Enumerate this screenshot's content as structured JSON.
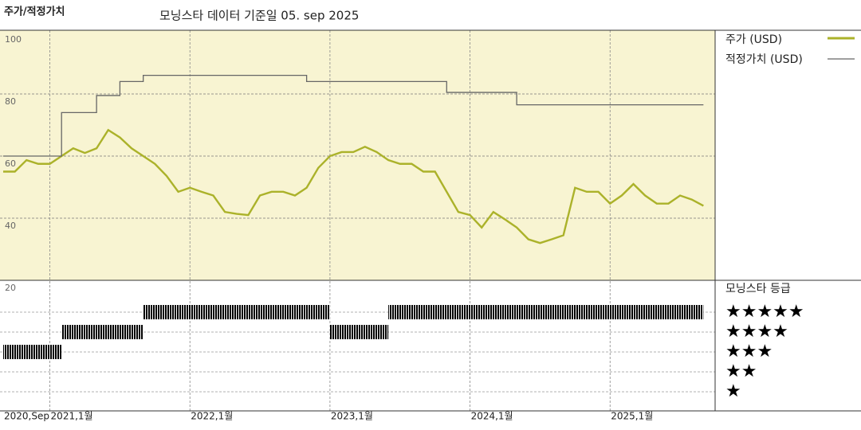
{
  "chart_data": {
    "type": "line",
    "title": "주가/적정가치",
    "subtitle": "모닝스타 데이터 기준일 05. sep 2025",
    "x": [
      "2020-09",
      "2020-10",
      "2020-11",
      "2020-12",
      "2021-01",
      "2021-02",
      "2021-03",
      "2021-04",
      "2021-05",
      "2021-06",
      "2021-07",
      "2021-08",
      "2021-09",
      "2021-10",
      "2021-11",
      "2021-12",
      "2022-01",
      "2022-02",
      "2022-03",
      "2022-04",
      "2022-05",
      "2022-06",
      "2022-07",
      "2022-08",
      "2022-09",
      "2022-10",
      "2022-11",
      "2022-12",
      "2023-01",
      "2023-02",
      "2023-03",
      "2023-04",
      "2023-05",
      "2023-06",
      "2023-07",
      "2023-08",
      "2023-09",
      "2023-10",
      "2023-11",
      "2023-12",
      "2024-01",
      "2024-02",
      "2024-03",
      "2024-04",
      "2024-05",
      "2024-06",
      "2024-07",
      "2024-08",
      "2024-09",
      "2024-10",
      "2024-11",
      "2024-12",
      "2025-01",
      "2025-02",
      "2025-03",
      "2025-04",
      "2025-05",
      "2025-06",
      "2025-07",
      "2025-08",
      "2025-09"
    ],
    "series": [
      {
        "name": "주가 (USD)",
        "color": "#abb22a",
        "style": "line",
        "values": [
          55,
          55,
          58.7,
          57.5,
          57.5,
          60,
          62.5,
          61,
          62.5,
          68.4,
          66,
          62.5,
          60,
          57.5,
          53.6,
          48.5,
          49.8,
          48.5,
          47.3,
          42,
          41.4,
          41,
          47.3,
          48.5,
          48.5,
          47.3,
          49.8,
          56.2,
          60,
          61.3,
          61.3,
          63,
          61.3,
          58.7,
          57.5,
          57.5,
          55,
          55,
          48.5,
          42,
          41,
          37,
          42,
          39.6,
          37,
          33.2,
          32,
          33.2,
          34.5,
          49.8,
          48.5,
          48.5,
          44.7,
          47.3,
          51,
          47.3,
          44.7,
          44.7,
          47.3,
          46,
          44
        ]
      },
      {
        "name": "적정가치 (USD)",
        "color": "#666666",
        "style": "step",
        "values": [
          60,
          60,
          60,
          60,
          60,
          74,
          74,
          74,
          79.5,
          79.5,
          84,
          84,
          86,
          86,
          86,
          86,
          86,
          86,
          86,
          86,
          86,
          86,
          86,
          86,
          86,
          86,
          84,
          84,
          84,
          84,
          84,
          84,
          84,
          84,
          84,
          84,
          84,
          84,
          80.5,
          80.5,
          80.5,
          80.5,
          80.5,
          80.5,
          76.5,
          76.5,
          76.5,
          76.5,
          76.5,
          76.5,
          76.5,
          76.5,
          76.5,
          76.5,
          76.5,
          76.5,
          76.5,
          76.5,
          76.5,
          76.5,
          76.5
        ]
      }
    ],
    "xlim": [
      "2020-09",
      "2025-10"
    ],
    "xticks": [
      {
        "value": "2020-09",
        "label": "2020,Sep"
      },
      {
        "value": "2021-01",
        "label": "2021,1월"
      },
      {
        "value": "2022-01",
        "label": "2022,1월"
      },
      {
        "value": "2023-01",
        "label": "2023,1월"
      },
      {
        "value": "2024-01",
        "label": "2024,1월"
      },
      {
        "value": "2025-01",
        "label": "2025,1월"
      }
    ],
    "ylim": [
      20,
      100
    ],
    "yticks": [
      20,
      40,
      60,
      80,
      100
    ],
    "grid": true,
    "rating_title": "모닝스타 등급",
    "rating_legend": [
      "★★★★★",
      "★★★★",
      "★★★",
      "★★",
      "★"
    ],
    "ratings": [
      {
        "start": "2020-09",
        "end": "2021-02",
        "stars": 3,
        "color": "#222222"
      },
      {
        "start": "2021-02",
        "end": "2021-09",
        "stars": 4,
        "color": "#222222"
      },
      {
        "start": "2021-09",
        "end": "2023-01",
        "stars": 5,
        "color": "#3a8a6c"
      },
      {
        "start": "2023-01",
        "end": "2023-06",
        "stars": 4,
        "color": "#222222"
      },
      {
        "start": "2023-06",
        "end": "2025-09",
        "stars": 5,
        "color": "#3a8a6c"
      }
    ]
  }
}
